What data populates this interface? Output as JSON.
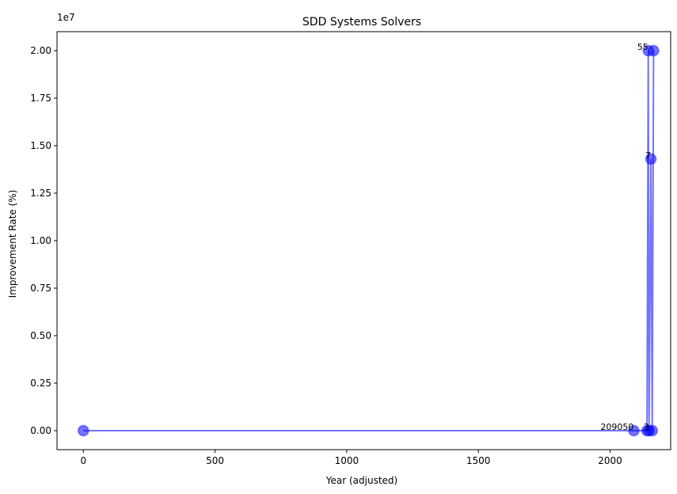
{
  "chart_data": {
    "type": "line",
    "title": "SDD Systems Solvers",
    "xlabel": "Year (adjusted)",
    "ylabel": "Improvement Rate (%)",
    "y_offset_label": "1e7",
    "xlim": [
      -100,
      2230
    ],
    "ylim": [
      -1000000,
      21000000
    ],
    "x_ticks": [
      0,
      500,
      1000,
      1500,
      2000
    ],
    "x_tick_labels": [
      "0",
      "500",
      "1000",
      "1500",
      "2000"
    ],
    "y_ticks": [
      0,
      2500000,
      5000000,
      7500000,
      10000000,
      12500000,
      15000000,
      17500000,
      20000000
    ],
    "y_tick_labels": [
      "0.00",
      "0.25",
      "0.50",
      "0.75",
      "1.00",
      "1.25",
      "1.50",
      "1.75",
      "2.00"
    ],
    "grid": false,
    "marker_color": "#0000ff",
    "line_color": "#0000ff",
    "series": [
      {
        "points": [
          {
            "x": 0,
            "y": 0
          },
          {
            "x": 2090,
            "y": 0
          },
          {
            "x": 2140,
            "y": 0
          },
          {
            "x": 2145,
            "y": 20000000
          },
          {
            "x": 2148,
            "y": 0
          },
          {
            "x": 2155,
            "y": 14300000
          },
          {
            "x": 2160,
            "y": 0
          },
          {
            "x": 2165,
            "y": 20000000
          }
        ]
      }
    ],
    "annotations": [
      {
        "text": "209050",
        "x": 2090,
        "y": 0
      },
      {
        "text": "3",
        "x": 2148,
        "y": 0
      },
      {
        "text": "7",
        "x": 2155,
        "y": 14300000
      },
      {
        "text": "55",
        "x": 2145,
        "y": 20000000
      }
    ]
  }
}
